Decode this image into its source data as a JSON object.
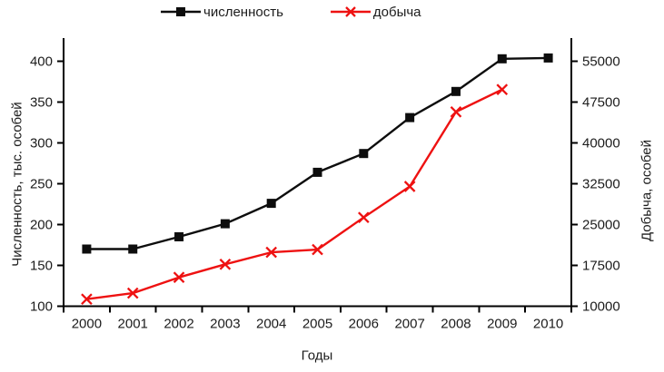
{
  "chart_data": {
    "type": "line",
    "title": "",
    "xlabel": "Годы",
    "x": [
      2000,
      2001,
      2002,
      2003,
      2004,
      2005,
      2006,
      2007,
      2008,
      2009,
      2010
    ],
    "left_axis": {
      "label": "Численность, тыс. особей",
      "min": 100,
      "max": 400,
      "ticks": [
        100,
        150,
        200,
        250,
        300,
        350,
        400
      ]
    },
    "right_axis": {
      "label": "Добыча, особей",
      "min": 10000,
      "max": 55000,
      "ticks": [
        10000,
        17500,
        25000,
        32500,
        40000,
        47500,
        55000
      ]
    },
    "grid": false,
    "legend_position": "top",
    "series": [
      {
        "name": "численность",
        "axis": "left",
        "color": "#0d0d0d",
        "marker": "square",
        "x": [
          2000,
          2001,
          2002,
          2003,
          2004,
          2005,
          2006,
          2007,
          2008,
          2009,
          2010
        ],
        "values": [
          170,
          170,
          185,
          201,
          226,
          264,
          287,
          331,
          363,
          403,
          404
        ]
      },
      {
        "name": "добыча",
        "axis": "right",
        "color": "#ee1111",
        "marker": "x",
        "x": [
          2000,
          2001,
          2002,
          2003,
          2004,
          2005,
          2006,
          2007,
          2008,
          2009
        ],
        "values": [
          11300,
          12400,
          15300,
          17700,
          19900,
          20400,
          26300,
          32000,
          45700,
          49800
        ]
      }
    ]
  },
  "colors": {
    "axis": "#000000",
    "text": "#1c1c1c",
    "background": "#ffffff"
  }
}
